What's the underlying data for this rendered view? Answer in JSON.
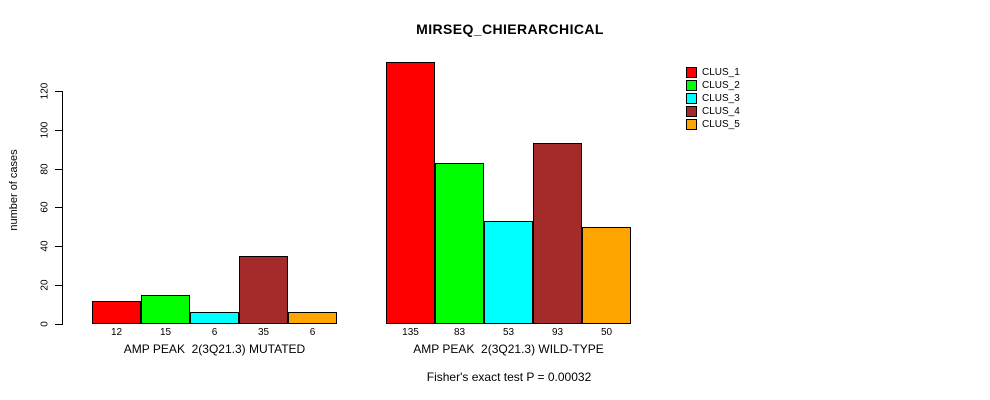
{
  "title": "MIRSEQ_CHIERARCHICAL",
  "ylabel": "number of cases",
  "footer": "Fisher's exact test P = 0.00032",
  "chart_data": {
    "type": "bar",
    "title": "MIRSEQ_CHIERARCHICAL",
    "xlabel": "",
    "ylabel": "number of cases",
    "ylim": [
      0,
      135
    ],
    "yticks": [
      0,
      20,
      40,
      60,
      80,
      100,
      120
    ],
    "grid": false,
    "legend_position": "top-right",
    "legend": [
      "CLUS_1",
      "CLUS_2",
      "CLUS_3",
      "CLUS_4",
      "CLUS_5"
    ],
    "series_colors": [
      "#FF0000",
      "#00FF00",
      "#00FFFF",
      "#A52A2A",
      "#FFA500"
    ],
    "groups": [
      {
        "label": "AMP PEAK  2(3Q21.3) MUTATED",
        "values": [
          12,
          15,
          6,
          35,
          6
        ]
      },
      {
        "label": "AMP PEAK  2(3Q21.3) WILD-TYPE",
        "values": [
          135,
          83,
          53,
          93,
          50
        ]
      }
    ],
    "annotation": "Fisher's exact test P = 0.00032"
  }
}
